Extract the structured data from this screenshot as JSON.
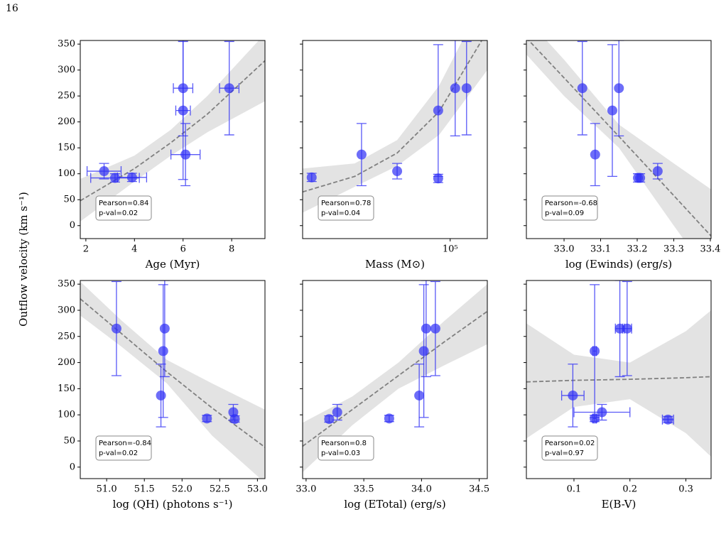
{
  "page_number": "16",
  "ylabel": "Outflow velocity (km s⁻¹)",
  "chart_data": [
    {
      "type": "scatter",
      "xlabel": "Age (Myr)",
      "color": "#2f2ff5",
      "x": [
        2.75,
        3.2,
        3.9,
        6.0,
        6.0,
        6.1,
        7.9
      ],
      "values": [
        105,
        92,
        93,
        265,
        222,
        137,
        265
      ],
      "xerr": [
        0.7,
        1.0,
        0.6,
        0.4,
        0.3,
        0.6,
        0.4
      ],
      "yerr": [
        15,
        8,
        8,
        92,
        133,
        60,
        90
      ],
      "xlim": [
        1.77,
        9.37
      ],
      "xticks": [
        2,
        4,
        6,
        8
      ],
      "ylim": [
        -25,
        357
      ],
      "yticks": [
        0,
        50,
        100,
        150,
        200,
        250,
        300,
        350
      ],
      "fit": {
        "x": [
          1.77,
          4,
          5.5,
          7,
          9.37
        ],
        "y": [
          48,
          110,
          160,
          215,
          318
        ],
        "lower": [
          8,
          85,
          135,
          180,
          240
        ],
        "upper": [
          90,
          135,
          185,
          250,
          370
        ]
      },
      "annotation": [
        "Pearson=0.84",
        "p-val=0.02"
      ]
    },
    {
      "type": "scatter",
      "xlabel": "Mass (M⊙)",
      "color": "#2f2ff5",
      "xscale": "log",
      "x": [
        20000,
        35700,
        54000,
        87000,
        87000,
        106000,
        121000
      ],
      "values": [
        93,
        137,
        105,
        91,
        222,
        265,
        265
      ],
      "yerr": [
        8,
        60,
        15,
        8,
        127,
        92,
        90
      ],
      "xlim": [
        18000,
        154000
      ],
      "xticks": [
        {
          "value": 100000,
          "label": "10⁵"
        }
      ],
      "ylim": [
        -25,
        357
      ],
      "yticks": [
        0,
        50,
        100,
        150,
        200,
        250,
        300,
        350
      ],
      "fit": {
        "x": [
          18000,
          33000,
          54000,
          88000,
          154000
        ],
        "y": [
          65,
          95,
          140,
          220,
          375
        ],
        "lower": [
          25,
          75,
          115,
          175,
          300
        ],
        "upper": [
          110,
          120,
          165,
          270,
          450
        ]
      },
      "annotation": [
        "Pearson=0.78",
        "p-val=0.04"
      ]
    },
    {
      "type": "scatter",
      "xlabel": "log (Ewinds) (erg/s)",
      "color": "#2f2ff5",
      "x": [
        33.05,
        33.085,
        33.132,
        33.15,
        33.202,
        33.208,
        33.256
      ],
      "values": [
        265,
        137,
        222,
        265,
        92,
        92,
        105
      ],
      "yerr": [
        90,
        60,
        127,
        92,
        8,
        8,
        15
      ],
      "xlim": [
        32.897,
        33.402
      ],
      "xticks": [
        {
          "value": 33.0,
          "label": "33.0"
        },
        33.1,
        33.2,
        33.3,
        33.4
      ],
      "ylim": [
        -25,
        357
      ],
      "yticks": [
        0,
        50,
        100,
        150,
        200,
        250,
        300,
        350
      ],
      "fit": {
        "x": [
          32.897,
          33.0,
          33.15,
          33.3,
          33.402
        ],
        "y": [
          362,
          285,
          172,
          58,
          -20
        ],
        "lower": [
          330,
          250,
          150,
          0,
          -100
        ],
        "upper": [
          400,
          320,
          195,
          120,
          70
        ]
      },
      "annotation": [
        "Pearson=-0.68",
        "p-val=0.09"
      ]
    },
    {
      "type": "scatter",
      "xlabel": "log (QH) (photons s⁻¹)",
      "color": "#2f2ff5",
      "x": [
        51.13,
        51.72,
        51.75,
        51.77,
        52.33,
        52.68,
        52.7
      ],
      "values": [
        265,
        137,
        222,
        265,
        93,
        105,
        92
      ],
      "yerr": [
        90,
        60,
        127,
        92,
        6,
        15,
        6
      ],
      "xlim": [
        50.65,
        53.1
      ],
      "xticks": [
        {
          "value": 51.0,
          "label": "51.0"
        },
        51.5,
        {
          "value": 52.0,
          "label": "52.0"
        },
        52.5,
        {
          "value": 53.0,
          "label": "53.0"
        }
      ],
      "ylim": [
        -22,
        357
      ],
      "yticks": [
        0,
        50,
        100,
        150,
        200,
        250,
        300,
        350
      ],
      "fit": {
        "x": [
          50.65,
          51.2,
          51.8,
          52.4,
          53.1
        ],
        "y": [
          322,
          255,
          182,
          113,
          38
        ],
        "lower": [
          290,
          230,
          160,
          60,
          -30
        ],
        "upper": [
          355,
          280,
          205,
          160,
          110
        ]
      },
      "annotation": [
        "Pearson=-0.84",
        "p-val=0.02"
      ]
    },
    {
      "type": "scatter",
      "xlabel": "log (ETotal) (erg/s)",
      "color": "#2f2ff5",
      "x": [
        33.2,
        33.27,
        33.72,
        33.98,
        34.02,
        34.04,
        34.12
      ],
      "values": [
        92,
        105,
        93,
        137,
        222,
        265,
        265
      ],
      "yerr": [
        6,
        15,
        6,
        60,
        127,
        92,
        90
      ],
      "xlim": [
        32.97,
        34.57
      ],
      "xticks": [
        {
          "value": 33.0,
          "label": "33.0"
        },
        33.5,
        {
          "value": 34.0,
          "label": "34.0"
        },
        34.5
      ],
      "ylim": [
        -22,
        357
      ],
      "yticks": [
        0,
        50,
        100,
        150,
        200,
        250,
        300,
        350
      ],
      "fit": {
        "x": [
          32.97,
          33.4,
          33.8,
          34.2,
          34.57
        ],
        "y": [
          40,
          110,
          175,
          240,
          298
        ],
        "lower": [
          -10,
          80,
          150,
          195,
          235
        ],
        "upper": [
          85,
          135,
          200,
          280,
          350
        ]
      },
      "annotation": [
        "Pearson=0.8",
        "p-val=0.03"
      ]
    },
    {
      "type": "scatter",
      "xlabel": "E(B-V)",
      "color": "#2f2ff5",
      "x": [
        0.098,
        0.137,
        0.137,
        0.15,
        0.182,
        0.195,
        0.268
      ],
      "values": [
        137,
        222,
        93,
        105,
        265,
        265,
        91
      ],
      "xerr": [
        0.02,
        0.003,
        0.003,
        0.05,
        0.008,
        0.008,
        0.01
      ],
      "yerr": [
        60,
        127,
        6,
        15,
        92,
        90,
        6
      ],
      "xlim": [
        0.015,
        0.345
      ],
      "xticks": [
        0.1,
        0.2,
        0.3
      ],
      "ylim": [
        -22,
        357
      ],
      "yticks": [
        0,
        50,
        100,
        150,
        200,
        250,
        300,
        350
      ],
      "fit": {
        "x": [
          0.015,
          0.1,
          0.2,
          0.3,
          0.345
        ],
        "y": [
          163,
          166,
          168,
          171,
          173
        ],
        "lower": [
          55,
          115,
          130,
          65,
          20
        ],
        "upper": [
          275,
          215,
          200,
          260,
          300
        ]
      },
      "annotation": [
        "Pearson=0.02",
        "p-val=0.97"
      ]
    }
  ]
}
